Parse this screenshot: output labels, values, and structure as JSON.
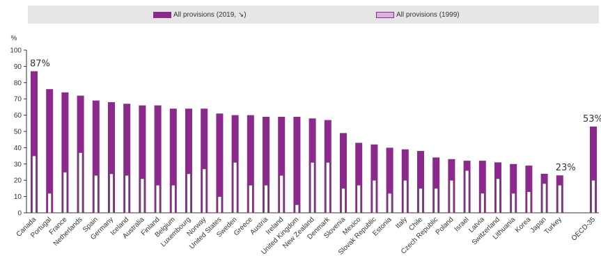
{
  "legend": {
    "series_2019_label": "All provisions (2019, ↘)",
    "series_1999_label": "All provisions (1999)"
  },
  "colors": {
    "series_2019": "#8b2a8c",
    "series_1999_fill": "#ffffff",
    "series_1999_stroke": "#555555",
    "legend_1999_fill": "#d8b4dc",
    "axis": "#333333",
    "legend_bg": "#e6e6e6"
  },
  "chart_data": {
    "type": "bar",
    "ylabel": "%",
    "ylim": [
      0,
      100
    ],
    "yticks": [
      0,
      10,
      20,
      30,
      40,
      50,
      60,
      70,
      80,
      90,
      100
    ],
    "grid": false,
    "legend_position": "top",
    "categories": [
      "Canada",
      "Portugal",
      "France",
      "Netherlands",
      "Spain",
      "Germany",
      "Iceland",
      "Australia",
      "Finland",
      "Belgium",
      "Luxembourg",
      "Norway",
      "United States",
      "Sweden",
      "Greece",
      "Austria",
      "Ireland",
      "United Kingdom",
      "New Zealand",
      "Denmark",
      "Slovenia",
      "Mexico",
      "Slovak Republic",
      "Estonia",
      "Italy",
      "Chile",
      "Czech Republic",
      "Poland",
      "Israel",
      "Latvia",
      "Switzerland",
      "Lithuania",
      "Korea",
      "Japan",
      "Turkey",
      "OECD-35"
    ],
    "series": [
      {
        "name": "All provisions (2019, ↘)",
        "values": [
          87,
          76,
          74,
          72,
          69,
          68,
          67,
          66,
          66,
          64,
          64,
          64,
          61,
          60,
          60,
          59,
          59,
          59,
          58,
          57,
          49,
          43,
          42,
          40,
          39,
          38,
          34,
          33,
          32,
          32,
          31,
          30,
          29,
          24,
          23,
          53
        ]
      },
      {
        "name": "All provisions (1999)",
        "values": [
          35,
          12,
          25,
          37,
          23,
          24,
          23,
          21,
          17,
          17,
          24,
          27,
          10,
          31,
          17,
          17,
          23,
          5,
          31,
          31,
          15,
          17,
          20,
          12,
          20,
          15,
          15,
          20,
          26,
          12,
          21,
          12,
          13,
          18,
          17,
          20
        ]
      }
    ],
    "annotations": [
      {
        "category": "Canada",
        "text": "87%"
      },
      {
        "category": "Turkey",
        "text": "23%"
      },
      {
        "category": "OECD-35",
        "text": "53%"
      }
    ]
  }
}
